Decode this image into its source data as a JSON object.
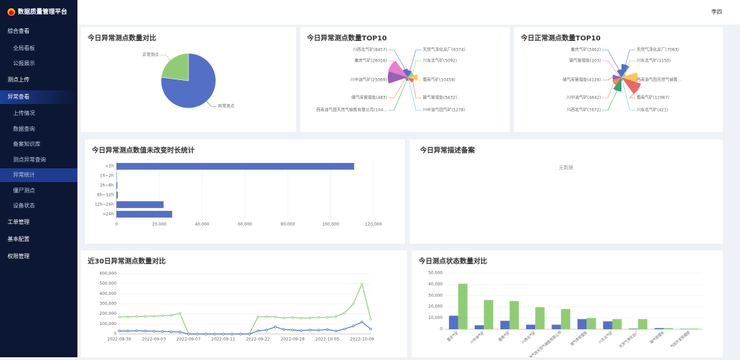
{
  "header": {
    "logo": "数据质量管理平台",
    "user": "李四"
  },
  "sidebar": {
    "items": [
      "综合查看",
      "全局看板",
      "公报展示",
      "测点上传",
      "异常查看",
      "上传情况",
      "数据查询",
      "备案知识库",
      "测点异常查询",
      "异常统计",
      "僵尸测点",
      "设备状态",
      "工单管理",
      "基本配置",
      "权限管理"
    ]
  },
  "records": {
    "title": "今日异常描述备案",
    "empty": "无数据"
  },
  "chart_data": [
    {
      "type": "pie",
      "title": "今日异常测点数量对比",
      "categories": [
        "异常测点",
        "正常测点"
      ],
      "values": [
        77,
        23
      ],
      "colors": [
        "#5470c6",
        "#91cc75"
      ]
    },
    {
      "type": "rose",
      "title": "今日异常测点数量TOP10",
      "categories": [
        "天然气净化总厂(6374)",
        "川东北气矿(5092)",
        "蜀南气矿(10458)",
        "输气管理处(5432)",
        "川中油气田气矿(1278)",
        "西南油气田天然气销售有限公司(104...",
        "储气库管理处(483)",
        "川中油气矿(25069)",
        "重庆气矿(26016)",
        "川西北气矿(8457)"
      ],
      "values": [
        6374,
        5092,
        10458,
        5432,
        1278,
        1040,
        483,
        25069,
        26016,
        8457
      ],
      "colors": [
        "#5470c6",
        "#91cc75",
        "#fac858",
        "#ee6666",
        "#73c0de",
        "#3ba272",
        "#fc8452",
        "#9a60b4",
        "#ea7ccc",
        "#5470c6"
      ]
    },
    {
      "type": "rose",
      "title": "今日正常测点数量TOP10",
      "categories": [
        "天然气净化总厂(7063)",
        "川东北气矿(1150)",
        "西南油气田天然气销售...",
        "蜀南气矿(11987)",
        "川东北气矿(421)",
        "川西北气矿(7672)",
        "川中油气矿(4642)",
        "储气库管理处(4128)",
        "输气管理处(103)",
        "重庆气矿(3462)"
      ],
      "values": [
        7063,
        1150,
        9000,
        11987,
        421,
        7672,
        4642,
        4128,
        103,
        3462
      ],
      "colors": [
        "#5470c6",
        "#91cc75",
        "#fac858",
        "#ee6666",
        "#73c0de",
        "#3ba272",
        "#fc8452",
        "#9a60b4",
        "#ea7ccc",
        "#5470c6"
      ]
    },
    {
      "type": "bar",
      "horizontal": true,
      "title": "今日异常测点数值未改变时长统计",
      "categories": [
        "<1h",
        "1h~2h",
        "2h~6h",
        "6h~12h",
        "12h~24h",
        ">24h"
      ],
      "values": [
        111000,
        150,
        400,
        600,
        22000,
        26000
      ],
      "color": "#5470c6",
      "grid": true,
      "xlim": [
        0,
        120000
      ],
      "xticks": [
        0,
        {
          "value": 20000,
          "label": "20,000"
        },
        {
          "value": 40000,
          "label": "40,000"
        },
        {
          "value": 60000,
          "label": "60,000"
        },
        {
          "value": 80000,
          "label": "80,000"
        },
        {
          "value": 100000,
          "label": "100,000"
        },
        {
          "value": 120000,
          "label": "120,000"
        }
      ]
    },
    {
      "type": "line",
      "title": "近30日异常测点数量对比",
      "grid": true,
      "categories": [
        "2022-08-30",
        null,
        null,
        null,
        "2022-09-03",
        null,
        null,
        null,
        "2022-09-07",
        null,
        null,
        null,
        "2022-09-11",
        null,
        null,
        null,
        "2022-09-22",
        null,
        null,
        null,
        "2022-09-28",
        null,
        null,
        null,
        "2022-10-05",
        null,
        null,
        null,
        "2022-10-09",
        null
      ],
      "series": [
        {
          "color": "#91cc75",
          "values": [
            170000,
            172000,
            174000,
            176000,
            178000,
            182000,
            186000,
            205000,
            0,
            0,
            0,
            0,
            0,
            0,
            0,
            0,
            170000,
            172000,
            170000,
            160000,
            165000,
            158000,
            160000,
            165000,
            165000,
            175000,
            210000,
            300000,
            500000,
            150000
          ]
        },
        {
          "color": "#5470c6",
          "values": [
            30000,
            30000,
            32000,
            30000,
            28000,
            25000,
            22000,
            20000,
            0,
            0,
            0,
            0,
            0,
            0,
            0,
            0,
            30000,
            40000,
            70000,
            45000,
            40000,
            35000,
            40000,
            38000,
            45000,
            30000,
            50000,
            80000,
            120000,
            50000
          ]
        }
      ],
      "ylim": [
        0,
        600000
      ],
      "yticks": [
        0,
        {
          "value": 100000,
          "label": "100,000"
        },
        {
          "value": 200000,
          "label": "200,000"
        },
        {
          "value": 300000,
          "label": "300,000"
        },
        {
          "value": 400000,
          "label": "400,000"
        },
        {
          "value": 500000,
          "label": "500,000"
        },
        {
          "value": 600000,
          "label": "600,000"
        }
      ]
    },
    {
      "type": "bar",
      "title": "今日测点状态数量对比",
      "grid": true,
      "categories": [
        "重庆气矿",
        "川中油气矿",
        "蜀南气矿",
        "川西北气矿",
        "西南油气田天然气销售有限公司",
        "储气库管理处",
        "川东北气矿",
        "天然气净化总厂",
        "输气管理处",
        "气田开发管理部"
      ],
      "series": [
        {
          "color": "#5470c6",
          "values": [
            12000,
            3500,
            7500,
            4000,
            4000,
            9000,
            7000,
            500,
            1000,
            300
          ]
        },
        {
          "color": "#91cc75",
          "values": [
            40500,
            26000,
            25000,
            19500,
            18000,
            10000,
            9000,
            9000,
            1000,
            500
          ]
        }
      ],
      "ylim": [
        0,
        50000
      ],
      "yticks": [
        0,
        {
          "value": 10000,
          "label": "10,000"
        },
        {
          "value": 20000,
          "label": "20,000"
        },
        {
          "value": 30000,
          "label": "30,000"
        },
        {
          "value": 40000,
          "label": "40,000"
        },
        {
          "value": 50000,
          "label": "50,000"
        }
      ]
    }
  ]
}
